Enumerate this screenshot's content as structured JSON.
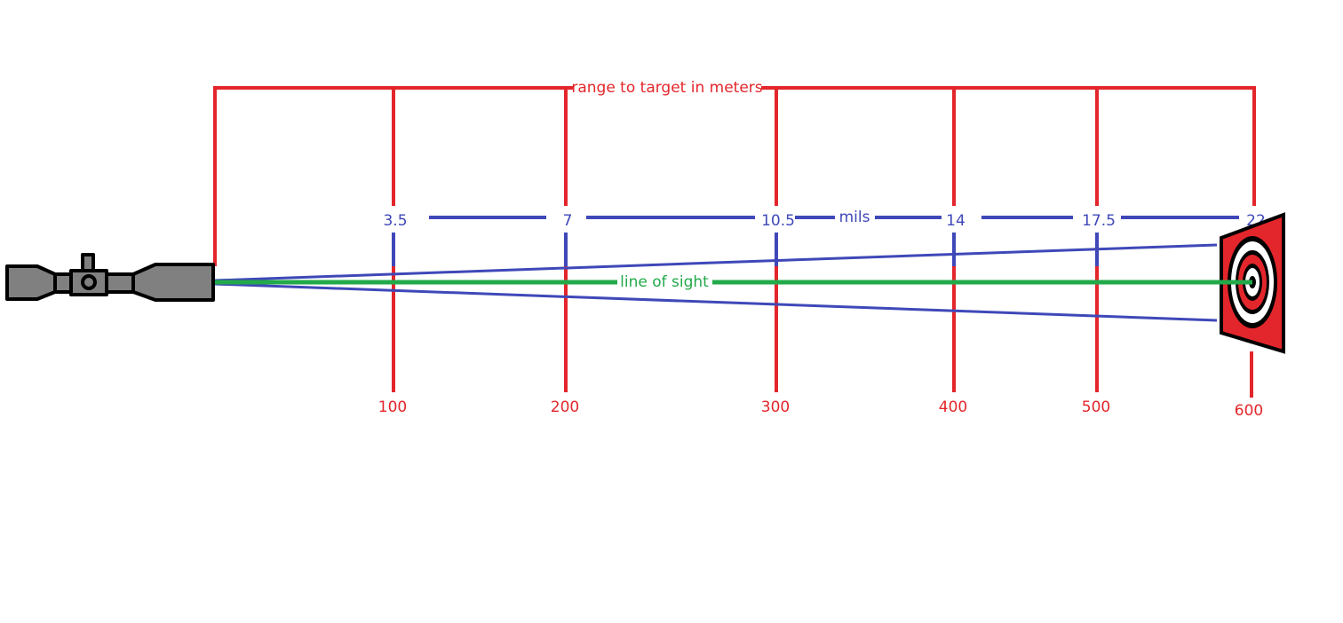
{
  "diagram": {
    "range_title": "range to target in meters",
    "mils_title": "mils",
    "sight_label": "line of sight",
    "markers": [
      {
        "range": "100",
        "mils": "3.5"
      },
      {
        "range": "200",
        "mils": "7"
      },
      {
        "range": "300",
        "mils": "10.5"
      },
      {
        "range": "400",
        "mils": "14"
      },
      {
        "range": "500",
        "mils": "17.5"
      },
      {
        "range": "600",
        "mils": "22"
      }
    ]
  }
}
